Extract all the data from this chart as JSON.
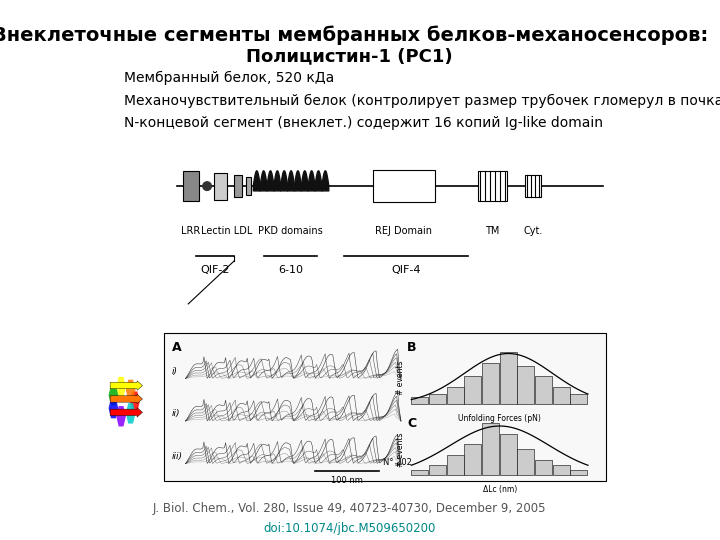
{
  "title_line1": "Внеклеточные сегменты мембранных белков-механосенсоров:",
  "title_line2": "Полицистин-1 (РС1)",
  "text_lines": [
    "Мембранный белок, 520 кДа",
    "Механочувствительный белок (контролирует размер трубочек гломерул в почках)",
    "N-концевой сегмент (внеклет.) содержит 16 копий Ig-like domain"
  ],
  "reference": "J. Biol. Chem., Vol. 280, Issue 49, 40723-40730, December 9, 2005",
  "doi": "doi:10.1074/jbc.M509650200",
  "bg_color": "#ffffff",
  "title1_fontsize": 14,
  "title2_fontsize": 13,
  "text_fontsize": 10,
  "ref_fontsize": 8.5,
  "domain_labels": [
    "LRR",
    "Lectin LDL",
    "PKD domains",
    "REJ Domain",
    "TM",
    "Cyt."
  ],
  "qif_labels": [
    "QIF-2",
    "6-10",
    "QIF-4"
  ],
  "domain_colors": {
    "lrr": "#888888",
    "lectin": "#cccccc",
    "pkd": "#222222",
    "rej": "#ffffff",
    "tm": "#888888",
    "cyt": "#888888"
  }
}
